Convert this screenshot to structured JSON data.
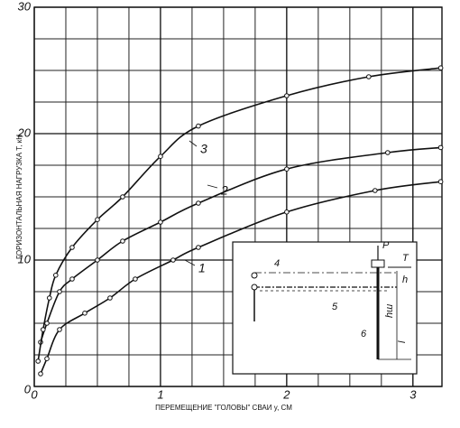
{
  "chart_data": {
    "type": "line",
    "x_label": "ПЕРЕМЕЩЕНИЕ \"ГОЛОВЫ\" СВАИ  y, СМ",
    "y_label": "ГОРИЗОНТАЛЬНАЯ НАГРУЗКА  T, кН",
    "xlim": [
      0,
      3.23
    ],
    "ylim": [
      0,
      30
    ],
    "xticks": [
      0,
      1,
      2,
      3
    ],
    "yticks": [
      0,
      10,
      20,
      30
    ],
    "grid": true,
    "series": [
      {
        "name": "1",
        "color": "#111111",
        "x": [
          0.05,
          0.1,
          0.2,
          0.4,
          0.6,
          0.8,
          1.1,
          1.3,
          2.0,
          2.7,
          3.22
        ],
        "values": [
          1,
          2.2,
          4.5,
          5.8,
          7,
          8.5,
          10,
          11,
          13.8,
          15.5,
          16.2
        ]
      },
      {
        "name": "2",
        "color": "#111111",
        "x": [
          0.05,
          0.1,
          0.2,
          0.3,
          0.5,
          0.7,
          1.0,
          1.3,
          2.0,
          2.8,
          3.22
        ],
        "values": [
          3.5,
          5,
          7.5,
          8.5,
          10,
          11.5,
          13,
          14.5,
          17.2,
          18.5,
          18.9
        ]
      },
      {
        "name": "3",
        "color": "#111111",
        "x": [
          0.03,
          0.07,
          0.12,
          0.17,
          0.3,
          0.5,
          0.7,
          1.0,
          1.3,
          2.0,
          2.65,
          3.22
        ],
        "values": [
          2,
          4.5,
          7,
          8.8,
          11,
          13.2,
          15,
          18.2,
          20.6,
          23,
          24.5,
          25.2
        ]
      }
    ],
    "inset_labels": [
      "P",
      "T",
      "h",
      "hш",
      "l",
      "4",
      "5",
      "6"
    ]
  }
}
